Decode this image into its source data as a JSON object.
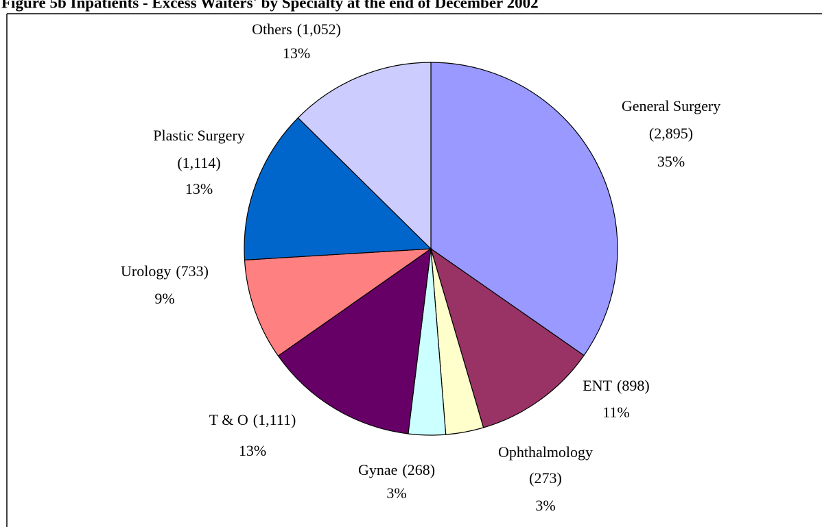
{
  "chart_data": {
    "type": "pie",
    "title": "Figure 5b      Inpatients - Excess Waiters' by Specialty at the end of December 2002",
    "categories": [
      "General Surgery",
      "ENT",
      "Ophthalmology",
      "Gynae",
      "T & O",
      "Urology",
      "Plastic Surgery",
      "Others"
    ],
    "values": [
      2895,
      898,
      273,
      268,
      1111,
      733,
      1114,
      1052
    ],
    "value_labels": [
      "(2,895)",
      "(898)",
      "(273)",
      "(268)",
      "(1,111)",
      "(733)",
      "(1,114)",
      "(1,052)"
    ],
    "percent_labels": [
      "35%",
      "11%",
      "3%",
      "3%",
      "13%",
      "9%",
      "13%",
      "13%"
    ],
    "colors": [
      "#9999ff",
      "#993366",
      "#ffffcc",
      "#ccffff",
      "#660066",
      "#ff8080",
      "#0066cc",
      "#ccccff"
    ]
  }
}
